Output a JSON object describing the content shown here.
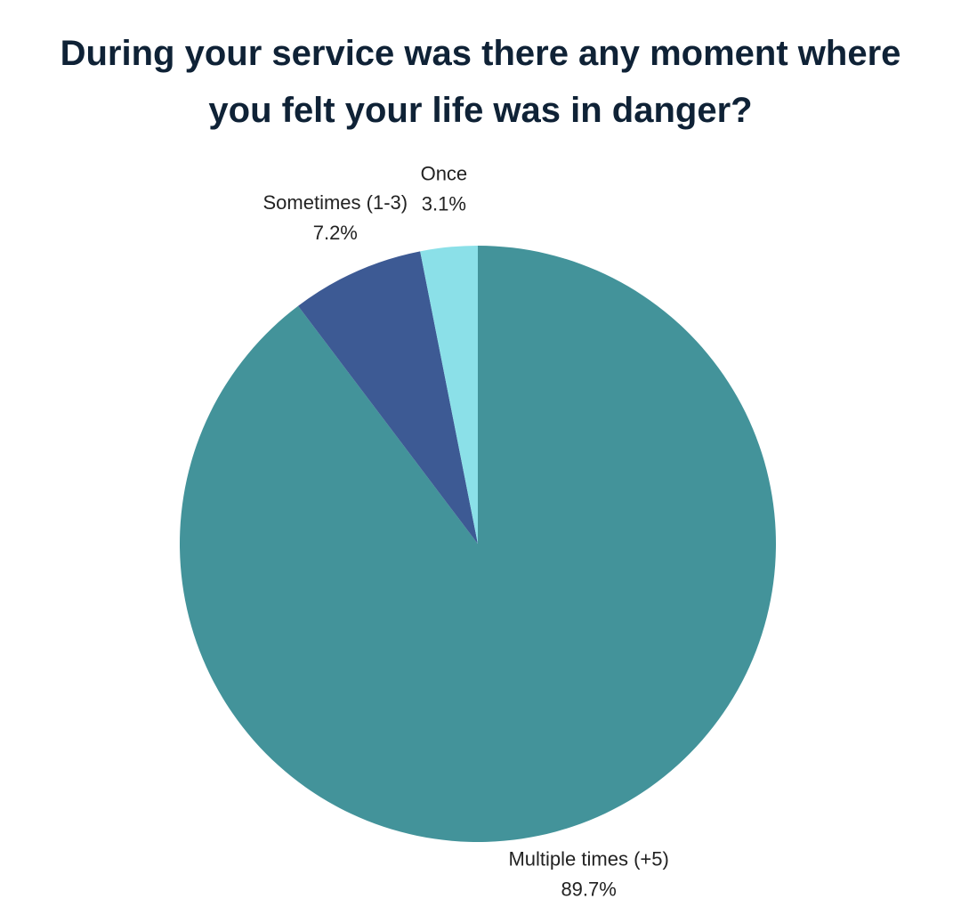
{
  "chart_data": {
    "type": "pie",
    "title": "During your service was there any moment where you felt your life was in danger?",
    "categories": [
      "Multiple times (+5)",
      "Sometimes (1-3)",
      "Once"
    ],
    "values": [
      89.7,
      7.2,
      3.1
    ],
    "value_labels": [
      "89.7%",
      "7.2%",
      "3.1%"
    ],
    "colors": [
      "#43939a",
      "#3d5a94",
      "#8be0e8"
    ]
  }
}
